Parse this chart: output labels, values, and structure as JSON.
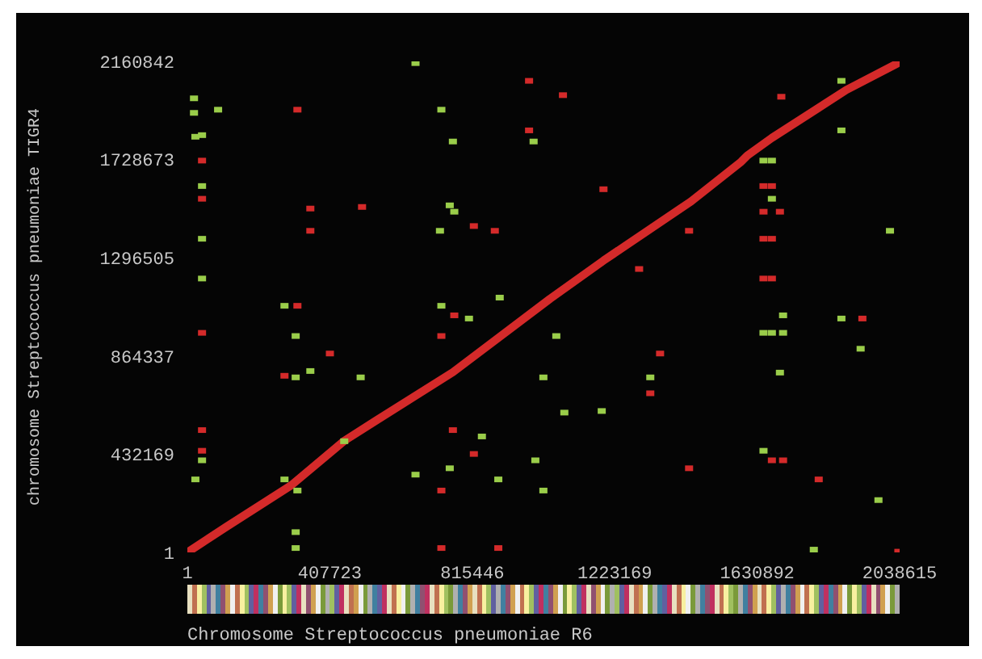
{
  "chart_data": {
    "type": "scatter",
    "xlabel": "Chromosome Streptococcus pneumoniae R6",
    "ylabel": "chromosome Streptococcus pneumoniae TIGR4",
    "xlim": [
      1,
      2038615
    ],
    "ylim": [
      1,
      2160842
    ],
    "xticks": [
      1,
      407723,
      815446,
      1223169,
      1630892,
      2038615
    ],
    "yticks": [
      1,
      432169,
      864337,
      1296505,
      1728673,
      2160842
    ],
    "grid": false,
    "marker": "square",
    "series": [
      {
        "type": "line",
        "marker": "none",
        "color": "#d42a2a",
        "x": [
          1,
          111000,
          297000,
          449000,
          542000,
          760000,
          1038000,
          1191000,
          1441000,
          1585000,
          1603000,
          1673000,
          1886000,
          2030000
        ],
        "values": [
          1,
          112000,
          295000,
          491000,
          582000,
          793000,
          1116000,
          1284000,
          1544000,
          1719000,
          1747000,
          1824000,
          2035000,
          2150000
        ]
      },
      {
        "color": "#d42a2a",
        "x": [
          978000,
          315000,
          978000,
          42000,
          42000,
          352000,
          500000,
          352000,
          820000,
          880000,
          1075000,
          1700000,
          1191000,
          1649000,
          1673000,
          1649000,
          1696000,
          1436000,
          1649000,
          1673000,
          1293000,
          1649000,
          1673000,
          315000,
          42000,
          408000,
          278000,
          727000,
          764000,
          42000,
          42000,
          760000,
          820000,
          727000,
          727000,
          890000,
          1932000,
          1353000,
          1325000,
          1436000,
          1673000,
          1705000,
          1807000,
          2035000
        ],
        "values": [
          2077000,
          1950000,
          1859000,
          1726000,
          1558000,
          1515000,
          1522000,
          1417000,
          1438000,
          1417000,
          2014000,
          2007000,
          1600000,
          1614000,
          1614000,
          1501000,
          1501000,
          1417000,
          1382000,
          1382000,
          1249000,
          1207000,
          1207000,
          1087000,
          968000,
          877000,
          779000,
          954000,
          1045000,
          540000,
          449000,
          540000,
          435000,
          274000,
          21000,
          21000,
          1031000,
          877000,
          702000,
          372000,
          407000,
          407000,
          323000,
          5000
        ]
      },
      {
        "color": "#9acd4a",
        "x": [
          653000,
          19000,
          19000,
          88000,
          23000,
          42000,
          727000,
          760000,
          991000,
          42000,
          751000,
          764000,
          723000,
          42000,
          42000,
          1872000,
          1872000,
          1649000,
          1673000,
          1673000,
          2011000,
          278000,
          310000,
          310000,
          352000,
          496000,
          727000,
          806000,
          894000,
          1019000,
          42000,
          23000,
          278000,
          315000,
          310000,
          310000,
          449000,
          653000,
          751000,
          843000,
          890000,
          996000,
          1019000,
          1056000,
          1325000,
          1079000,
          1186000,
          1705000,
          1649000,
          1673000,
          1705000,
          1872000,
          1927000,
          1696000,
          1649000,
          1978000,
          1793000
        ],
        "values": [
          2155000,
          2000000,
          1936000,
          1950000,
          1831000,
          1838000,
          1950000,
          1810000,
          1810000,
          1614000,
          1529000,
          1501000,
          1417000,
          1382000,
          1207000,
          2077000,
          1859000,
          1726000,
          1726000,
          1558000,
          1417000,
          1087000,
          954000,
          772000,
          800000,
          772000,
          1087000,
          1031000,
          1123000,
          772000,
          407000,
          323000,
          323000,
          274000,
          91000,
          21000,
          491000,
          344000,
          372000,
          512000,
          323000,
          407000,
          274000,
          954000,
          772000,
          617000,
          624000,
          1045000,
          968000,
          968000,
          968000,
          1031000,
          898000,
          793000,
          449000,
          232000,
          14000
        ]
      }
    ]
  }
}
